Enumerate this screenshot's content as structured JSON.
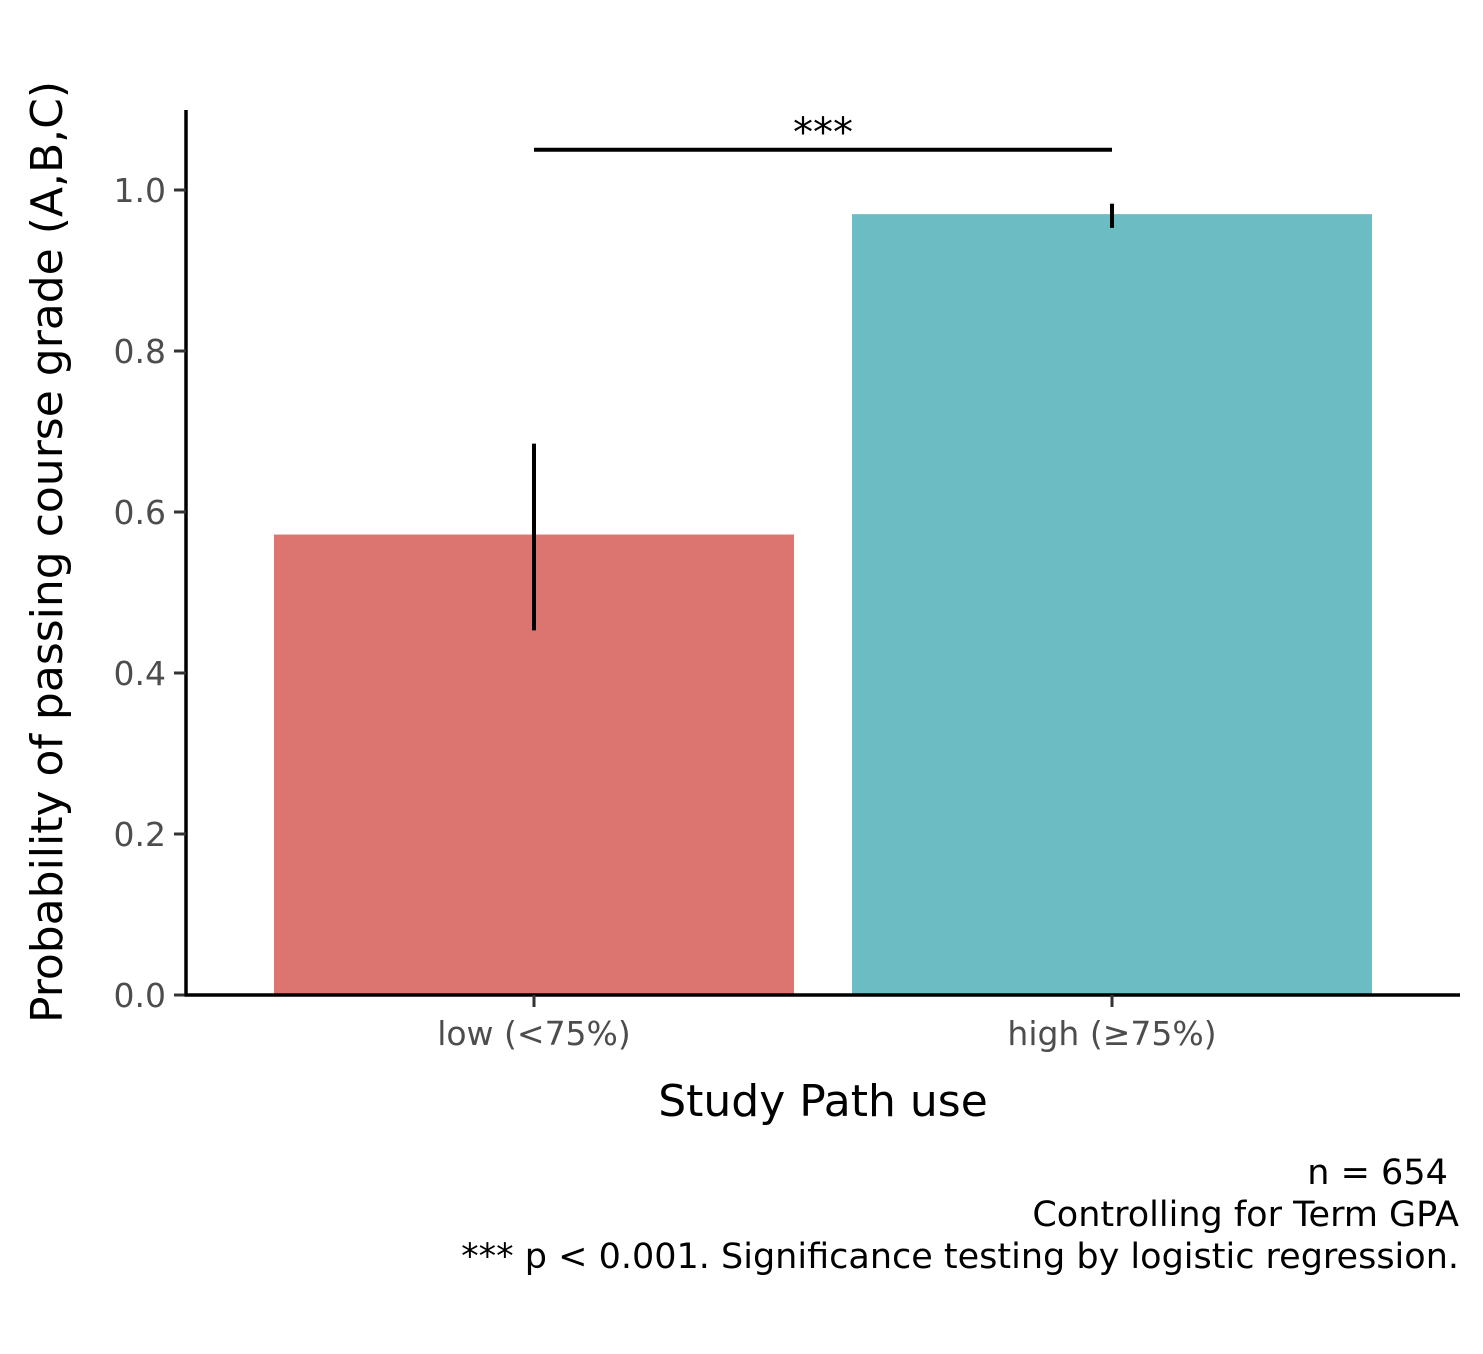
{
  "chart_data": {
    "type": "bar",
    "title": "",
    "xlabel": "Study Path use",
    "ylabel": "Probability of passing course grade (A,B,C)",
    "categories": [
      "low (<75%)",
      "high (≥75%)"
    ],
    "values": [
      0.572,
      0.97
    ],
    "error_low": [
      0.453,
      0.953
    ],
    "error_high": [
      0.685,
      0.983
    ],
    "colors": [
      "#DC756F",
      "#6CBDC3"
    ],
    "ylim": [
      0,
      1.1
    ],
    "yticks": [
      0.0,
      0.2,
      0.4,
      0.6,
      0.8,
      1.0
    ],
    "ytick_labels": [
      "0.0",
      "0.2",
      "0.4",
      "0.6",
      "0.8",
      "1.0"
    ],
    "grid": false,
    "significance": {
      "label": "***",
      "from": 0,
      "to": 1,
      "y": 1.05
    },
    "caption": [
      "n = 654 ",
      "Controlling for Term GPA",
      "*** p < 0.001. Significance testing by logistic regression."
    ]
  }
}
